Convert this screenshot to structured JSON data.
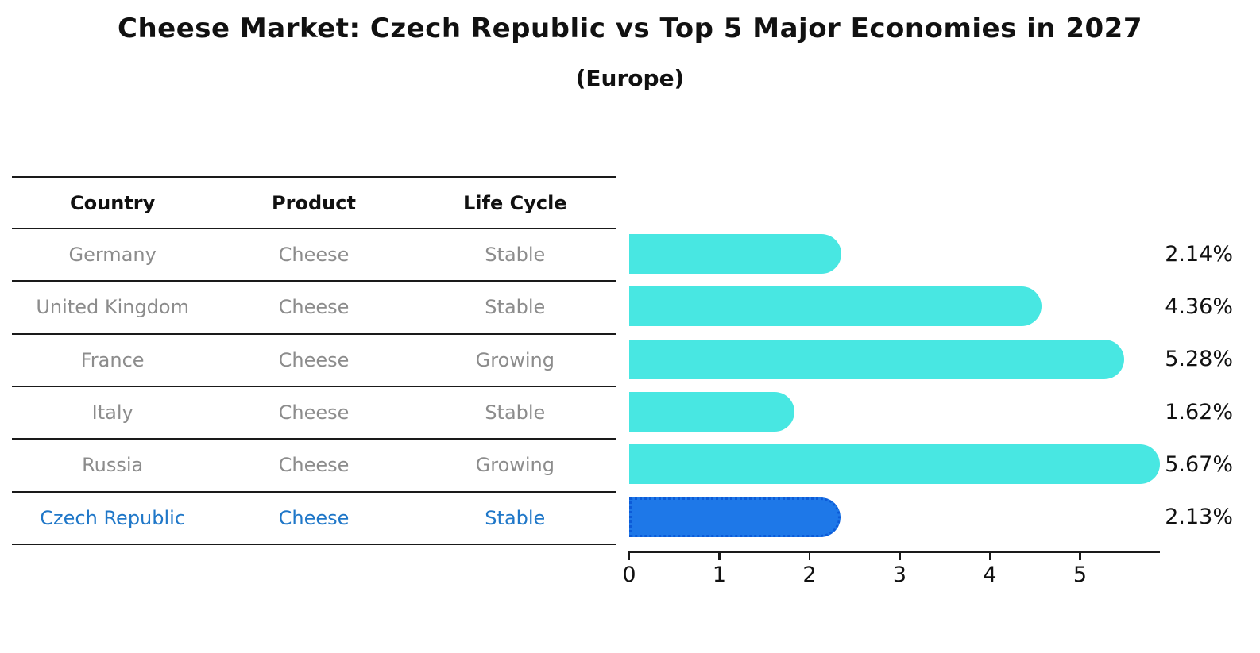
{
  "title": "Cheese Market: Czech Republic vs Top 5 Major Economies in 2027",
  "subtitle": "(Europe)",
  "table": {
    "headers": [
      "Country",
      "Product",
      "Life Cycle"
    ]
  },
  "chart_data": {
    "type": "bar",
    "orientation": "horizontal",
    "title": "Cheese Market: Czech Republic vs Top 5 Major Economies in 2027",
    "subtitle": "(Europe)",
    "categories": [
      "Germany",
      "United Kingdom",
      "France",
      "Italy",
      "Russia",
      "Czech Republic"
    ],
    "rows": [
      {
        "country": "Germany",
        "product": "Cheese",
        "life_cycle": "Stable",
        "value": 2.14,
        "label": "2.14%",
        "highlight": false
      },
      {
        "country": "United Kingdom",
        "product": "Cheese",
        "life_cycle": "Stable",
        "value": 4.36,
        "label": "4.36%",
        "highlight": false
      },
      {
        "country": "France",
        "product": "Cheese",
        "life_cycle": "Growing",
        "value": 5.28,
        "label": "5.28%",
        "highlight": false
      },
      {
        "country": "Italy",
        "product": "Cheese",
        "life_cycle": "Stable",
        "value": 1.62,
        "label": "1.62%",
        "highlight": false
      },
      {
        "country": "Russia",
        "product": "Cheese",
        "life_cycle": "Growing",
        "value": 5.67,
        "label": "5.67%",
        "highlight": false
      },
      {
        "country": "Czech Republic",
        "product": "Cheese",
        "life_cycle": "Stable",
        "value": 2.13,
        "label": "2.13%",
        "highlight": true
      }
    ],
    "x_ticks": [
      0,
      1,
      2,
      3,
      4,
      5
    ],
    "xlim": [
      0,
      5.88
    ],
    "value_unit": "%",
    "grid": false,
    "legend": false
  },
  "colors": {
    "bar_default": "#48E7E2",
    "bar_highlight": "#1E78E8",
    "highlight_border": "#0C5BD8",
    "highlight_text": "#1F77C8",
    "row_text": "#8C8C8C",
    "header_text": "#111111",
    "label_text": "#111111",
    "line": "#1A1A1A"
  }
}
